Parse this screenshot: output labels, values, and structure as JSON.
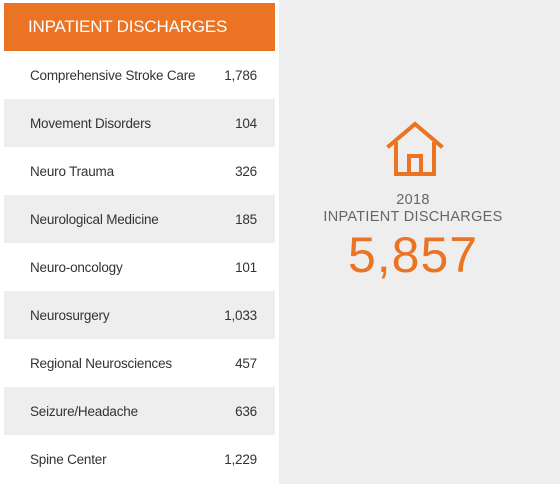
{
  "table": {
    "title": "INPATIENT DISCHARGES",
    "rows": [
      {
        "label": "Comprehensive Stroke Care",
        "value": "1,786"
      },
      {
        "label": "Movement Disorders",
        "value": "104"
      },
      {
        "label": "Neuro Trauma",
        "value": "326"
      },
      {
        "label": "Neurological Medicine",
        "value": "185"
      },
      {
        "label": "Neuro-oncology",
        "value": "101"
      },
      {
        "label": "Neurosurgery",
        "value": "1,033"
      },
      {
        "label": "Regional Neurosciences",
        "value": "457"
      },
      {
        "label": "Seizure/Headache",
        "value": "636"
      },
      {
        "label": "Spine Center",
        "value": "1,229"
      }
    ]
  },
  "summary": {
    "icon": "house-icon",
    "year": "2018",
    "label": "INPATIENT DISCHARGES",
    "total": "5,857"
  },
  "colors": {
    "accent": "#ea7424",
    "row_alt": "#eeeeee",
    "text": "#333333",
    "muted": "#666666"
  }
}
